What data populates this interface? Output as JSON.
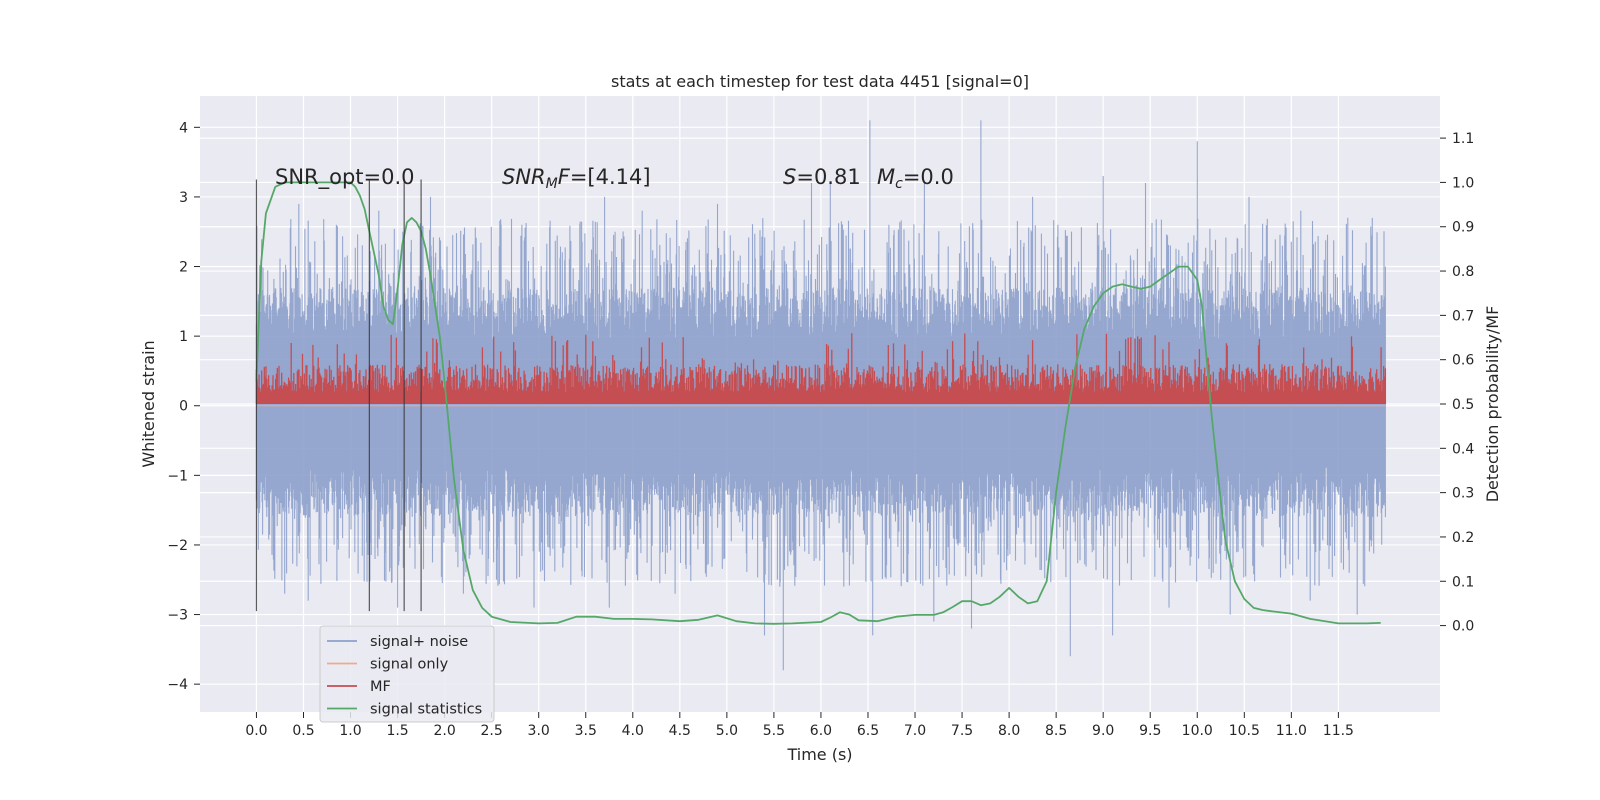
{
  "chart_data": {
    "type": "line",
    "title": "stats at each timestep for test data 4451 [signal=0]",
    "xlabel": "Time (s)",
    "ylabel_left": "Whitened strain",
    "ylabel_right": "Detection probability/MF",
    "xlim": [
      -0.6,
      12.58
    ],
    "ylim_left": [
      -4.4,
      4.45
    ],
    "ylim_right": [
      -0.195,
      1.195
    ],
    "grid": true,
    "x_ticks": [
      "0.0",
      "0.5",
      "1.0",
      "1.5",
      "2.0",
      "2.5",
      "3.0",
      "3.5",
      "4.0",
      "4.5",
      "5.0",
      "5.5",
      "6.0",
      "6.5",
      "7.0",
      "7.5",
      "8.0",
      "8.5",
      "9.0",
      "9.5",
      "10.0",
      "10.5",
      "11.0",
      "11.5"
    ],
    "y_ticks_left": [
      "4",
      "3",
      "2",
      "1",
      "0",
      "−1",
      "−2",
      "−3",
      "−4"
    ],
    "y_ticks_right": [
      "1.1",
      "1.0",
      "0.9",
      "0.8",
      "0.7",
      "0.6",
      "0.5",
      "0.4",
      "0.3",
      "0.2",
      "0.1",
      "0.0"
    ],
    "annotations": {
      "snr_opt": "SNR_opt=0.0",
      "snr_mf": "=[4.14]",
      "snr_mf_symbol": "SNR",
      "snr_mf_sub": "M",
      "snr_mf_tail": "F",
      "stat_s": "=0.81",
      "stat_s_symbol": "S",
      "stat_mc": "=0.0",
      "stat_mc_symbol": "M",
      "stat_mc_sub": "c"
    },
    "vertical_lines_x": [
      0.0,
      1.2,
      1.57,
      1.75
    ],
    "vertical_lines_range": [
      -2.95,
      3.25
    ],
    "legend": {
      "placement": "lower-left",
      "entries": [
        {
          "label": "signal+ noise",
          "color": "#8da0cb"
        },
        {
          "label": "signal only",
          "color": "#f0a98d"
        },
        {
          "label": "MF",
          "color": "#c44e52"
        },
        {
          "label": "signal statistics",
          "color": "#55a868"
        }
      ]
    },
    "series": [
      {
        "name": "signal+ noise",
        "axis": "left",
        "color": "#8da0cb",
        "style": "noise-band",
        "x_range": [
          0.0,
          12.0
        ],
        "typical_range": [
          -1.6,
          1.7
        ],
        "spikes_up": [
          [
            0.45,
            2.9
          ],
          [
            0.85,
            2.6
          ],
          [
            1.3,
            2.8
          ],
          [
            1.85,
            3.0
          ],
          [
            2.6,
            2.6
          ],
          [
            3.7,
            3.0
          ],
          [
            4.1,
            2.8
          ],
          [
            4.9,
            2.9
          ],
          [
            5.9,
            3.2
          ],
          [
            6.1,
            3.2
          ],
          [
            6.52,
            4.1
          ],
          [
            7.1,
            3.2
          ],
          [
            7.7,
            4.1
          ],
          [
            8.25,
            3.0
          ],
          [
            9.0,
            3.3
          ],
          [
            9.45,
            3.2
          ],
          [
            10.0,
            3.8
          ],
          [
            10.55,
            3.0
          ],
          [
            11.1,
            2.8
          ],
          [
            11.6,
            2.7
          ],
          [
            12.0,
            2.0
          ]
        ],
        "spikes_down": [
          [
            0.3,
            -2.7
          ],
          [
            0.55,
            -2.8
          ],
          [
            1.5,
            -2.9
          ],
          [
            2.2,
            -2.7
          ],
          [
            2.95,
            -2.9
          ],
          [
            3.75,
            -2.9
          ],
          [
            4.45,
            -2.7
          ],
          [
            5.4,
            -3.3
          ],
          [
            5.6,
            -3.8
          ],
          [
            6.55,
            -3.3
          ],
          [
            7.2,
            -3.1
          ],
          [
            7.6,
            -3.2
          ],
          [
            8.65,
            -3.6
          ],
          [
            9.1,
            -3.3
          ],
          [
            9.7,
            -2.9
          ],
          [
            10.35,
            -3.0
          ],
          [
            11.2,
            -2.8
          ],
          [
            11.7,
            -3.0
          ],
          [
            12.0,
            -1.6
          ]
        ]
      },
      {
        "name": "signal only",
        "axis": "left",
        "color": "#f0a98d",
        "x": [
          0.0,
          12.0
        ],
        "y": [
          0.0,
          0.0
        ]
      },
      {
        "name": "MF",
        "axis": "right",
        "color": "#c44e52",
        "style": "noise-band",
        "x_range": [
          0.0,
          12.0
        ],
        "baseline": 0.5,
        "typical_high": 0.59,
        "max": 0.66
      },
      {
        "name": "signal statistics",
        "axis": "right",
        "color": "#55a868",
        "x": [
          0.0,
          0.05,
          0.1,
          0.2,
          0.3,
          0.5,
          1.0,
          1.05,
          1.1,
          1.15,
          1.2,
          1.25,
          1.3,
          1.35,
          1.4,
          1.45,
          1.5,
          1.55,
          1.6,
          1.65,
          1.7,
          1.75,
          1.8,
          1.85,
          1.9,
          1.95,
          2.0,
          2.05,
          2.1,
          2.2,
          2.3,
          2.4,
          2.5,
          2.7,
          3.0,
          3.2,
          3.4,
          3.6,
          3.8,
          4.0,
          4.2,
          4.5,
          4.7,
          4.9,
          5.1,
          5.3,
          5.5,
          5.7,
          6.0,
          6.1,
          6.2,
          6.3,
          6.4,
          6.6,
          6.8,
          7.0,
          7.2,
          7.3,
          7.4,
          7.5,
          7.6,
          7.7,
          7.8,
          7.9,
          8.0,
          8.1,
          8.2,
          8.3,
          8.4,
          8.5,
          8.6,
          8.7,
          8.8,
          8.9,
          9.0,
          9.1,
          9.2,
          9.3,
          9.4,
          9.5,
          9.6,
          9.7,
          9.8,
          9.9,
          10.0,
          10.05,
          10.1,
          10.15,
          10.2,
          10.25,
          10.3,
          10.4,
          10.5,
          10.6,
          10.7,
          10.8,
          11.0,
          11.2,
          11.5,
          11.8,
          11.95
        ],
        "y": [
          0.55,
          0.82,
          0.93,
          0.99,
          1.0,
          1.0,
          1.0,
          0.99,
          0.97,
          0.94,
          0.89,
          0.84,
          0.79,
          0.72,
          0.69,
          0.68,
          0.76,
          0.86,
          0.91,
          0.92,
          0.91,
          0.89,
          0.85,
          0.79,
          0.72,
          0.65,
          0.55,
          0.44,
          0.33,
          0.17,
          0.08,
          0.04,
          0.02,
          0.008,
          0.005,
          0.006,
          0.02,
          0.02,
          0.015,
          0.015,
          0.014,
          0.01,
          0.013,
          0.023,
          0.01,
          0.005,
          0.004,
          0.005,
          0.008,
          0.018,
          0.03,
          0.025,
          0.012,
          0.01,
          0.02,
          0.024,
          0.024,
          0.03,
          0.042,
          0.055,
          0.055,
          0.046,
          0.05,
          0.065,
          0.085,
          0.065,
          0.05,
          0.055,
          0.1,
          0.3,
          0.45,
          0.58,
          0.67,
          0.72,
          0.75,
          0.765,
          0.77,
          0.765,
          0.76,
          0.765,
          0.78,
          0.795,
          0.81,
          0.81,
          0.78,
          0.72,
          0.6,
          0.48,
          0.38,
          0.28,
          0.19,
          0.1,
          0.06,
          0.04,
          0.035,
          0.032,
          0.027,
          0.015,
          0.005,
          0.005,
          0.006
        ]
      }
    ]
  }
}
